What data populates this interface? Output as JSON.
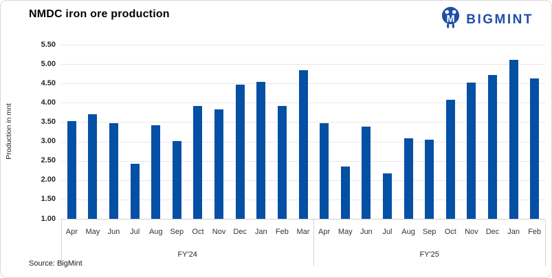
{
  "header": {
    "title": "NMDC iron ore production",
    "brand": {
      "name": "BIGMINT",
      "icon": "bigmint-droplet-m-icon",
      "color": "#1d4fa5"
    }
  },
  "chart_data": {
    "type": "bar",
    "title": "NMDC iron ore production",
    "xlabel": "",
    "ylabel": "Production in mnt",
    "ylim": [
      1.0,
      5.5
    ],
    "ytick_step": 0.5,
    "ytick_labels": [
      "5.50",
      "5.00",
      "4.50",
      "4.00",
      "3.50",
      "3.00",
      "2.50",
      "2.00",
      "1.50",
      "1.00"
    ],
    "grid": true,
    "legend": false,
    "bar_color": "#0450a4",
    "groups": [
      {
        "label": "FY'24",
        "categories": [
          "Apr",
          "May",
          "Jun",
          "Jul",
          "Aug",
          "Sep",
          "Oct",
          "Nov",
          "Dec",
          "Jan",
          "Feb",
          "Mar"
        ],
        "values": [
          3.52,
          3.71,
          3.47,
          2.43,
          3.42,
          3.01,
          3.92,
          3.83,
          4.47,
          4.54,
          3.91,
          4.85
        ]
      },
      {
        "label": "FY'25",
        "categories": [
          "Apr",
          "May",
          "Jun",
          "Jul",
          "Aug",
          "Sep",
          "Oct",
          "Nov",
          "Dec",
          "Jan",
          "Feb"
        ],
        "values": [
          3.48,
          2.36,
          3.38,
          2.17,
          3.08,
          3.04,
          4.07,
          4.52,
          4.71,
          5.1,
          4.63
        ]
      }
    ]
  },
  "footer": {
    "source": "Source: BigMint"
  }
}
